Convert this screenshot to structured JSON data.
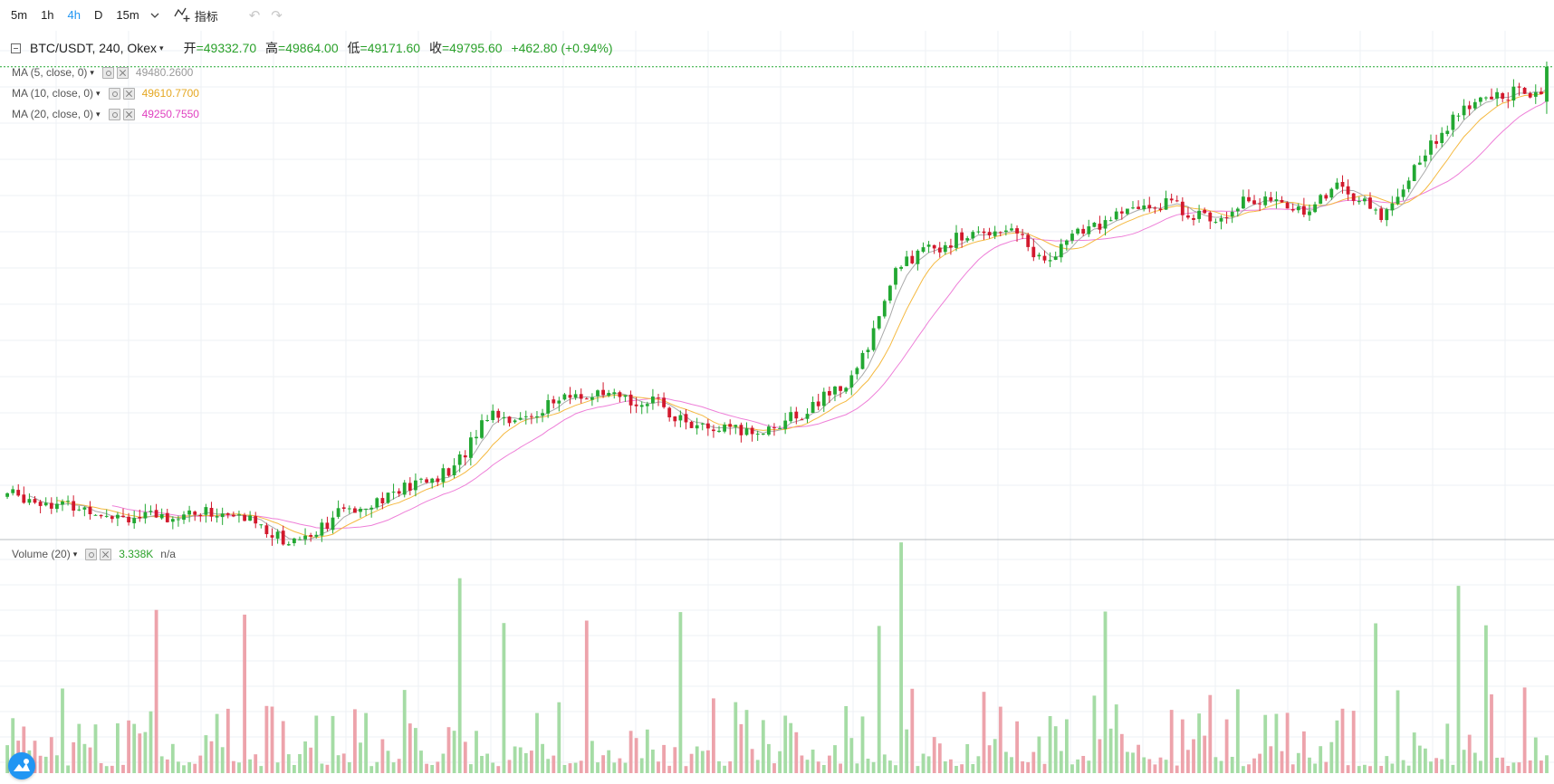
{
  "toolbar": {
    "intervals": [
      "5m",
      "1h",
      "4h",
      "D",
      "15m"
    ],
    "active_interval": "4h",
    "indicators_label": "指标"
  },
  "legend": {
    "symbol": "BTC/USDT, 240, Okex",
    "open_label": "开",
    "open": "=49332.70",
    "high_label": "高",
    "high": "=49864.00",
    "low_label": "低",
    "low": "=49171.60",
    "close_label": "收",
    "close": "=49795.60",
    "change": "+462.80 (+0.94%)",
    "studies": [
      {
        "name": "MA (5, close, 0)",
        "value": "49480.2600",
        "color": "#999999"
      },
      {
        "name": "MA (10, close, 0)",
        "value": "49610.7700",
        "color": "#e5a823"
      },
      {
        "name": "MA (20, close, 0)",
        "value": "49250.7550",
        "color": "#e040c0"
      }
    ],
    "volume": {
      "name": "Volume (20)",
      "value": "3.338K",
      "ma": "n/a"
    }
  },
  "colors": {
    "up": "#22a832",
    "down": "#d2192d",
    "vol_up": "#a5dca5",
    "vol_down": "#eda3ab",
    "ma5": "#aaaaaa",
    "ma10": "#f5b940",
    "ma20": "#ee7fd8",
    "grid": "#eef1f4",
    "accent": "#2196f3"
  },
  "icons": [
    "chevron-down-icon",
    "indicators-icon",
    "undo-icon",
    "redo-icon",
    "eye-icon",
    "close-icon",
    "logo-icon"
  ],
  "chart_data": {
    "type": "candlestick",
    "symbol": "BTC/USDT",
    "interval": "240",
    "candle_count": 280,
    "price_range": [
      43800,
      50200
    ],
    "last": {
      "open": 49332.7,
      "high": 49864.0,
      "low": 49171.6,
      "close": 49795.6
    },
    "ma_last": {
      "ma5": 49480.26,
      "ma10": 49610.77,
      "ma20": 49250.755
    },
    "volume_last": "3.338K"
  }
}
